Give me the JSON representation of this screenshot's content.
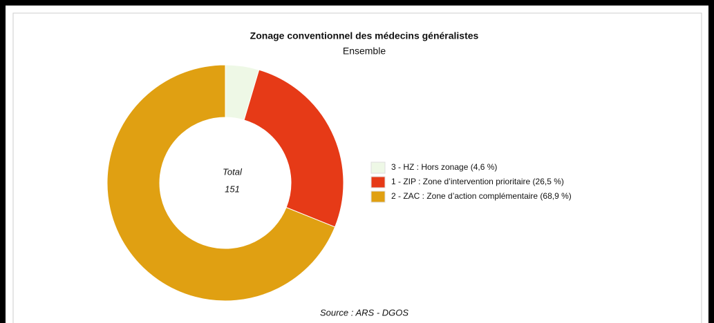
{
  "chart_data": {
    "type": "donut",
    "title": "Zonage conventionnel des médecins généralistes",
    "subtitle": "Ensemble",
    "categories": [
      "3 - HZ : Hors zonage (4,6 %)",
      "1 - ZIP : Zone d’intervention prioritaire (26,5 %)",
      "2 - ZAC : Zone d’action complémentaire (68,9 %)"
    ],
    "values": [
      4.6,
      26.5,
      68.9
    ],
    "colors": [
      "#eef8e6",
      "#e63a17",
      "#e0a012"
    ],
    "center_label": "Total",
    "total": 151,
    "source": "Source : ARS - DGOS"
  }
}
